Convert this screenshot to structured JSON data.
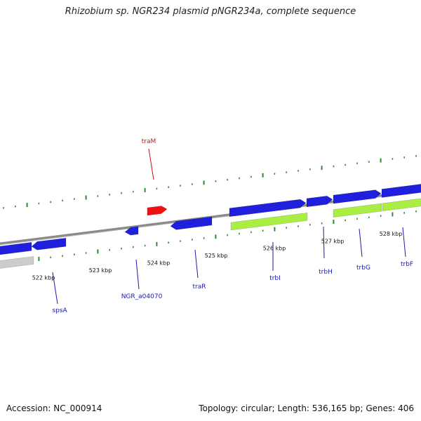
{
  "title": "Rhizobium sp. NGR234 plasmid pNGR234a, complete sequence",
  "accession": "Accession: NC_000914",
  "topology": "Topology: circular; Length: 536,165 bp; Genes: 406",
  "kbp_labels": [
    "522 kbp",
    "523 kbp",
    "524 kbp",
    "525 kbp",
    "526 kbp",
    "527 kbp",
    "528 kbp"
  ],
  "genes": [
    {
      "name": "spsA",
      "strand": "reverse"
    },
    {
      "name": "NGR_a04070",
      "strand": "reverse"
    },
    {
      "name": "traR",
      "strand": "reverse"
    },
    {
      "name": "traM",
      "strand": "forward"
    },
    {
      "name": "trbI",
      "strand": "forward"
    },
    {
      "name": "trbH",
      "strand": "forward"
    },
    {
      "name": "trbG",
      "strand": "forward"
    },
    {
      "name": "trbF",
      "strand": "forward"
    }
  ],
  "colors": {
    "backbone": "#8a8a8a",
    "cds": "#1f1fdd",
    "highlight": "#ee1111",
    "rna_feature": "#aaee44",
    "pseudo_feature": "#cccccc",
    "tick": "#2e8b2e",
    "label_blue": "#1a1aaa",
    "label_red": "#cc1111"
  }
}
